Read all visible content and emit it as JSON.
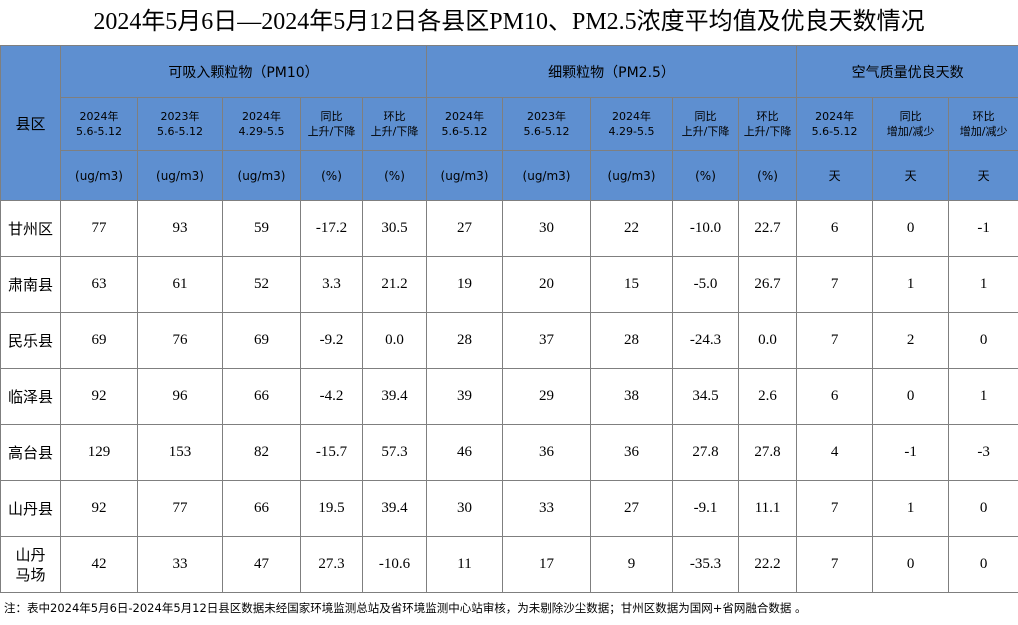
{
  "title": "2024年5月6日—2024年5月12日各县区PM10、PM2.5浓度平均值及优良天数情况",
  "table": {
    "corner": "县区",
    "groups": [
      "可吸入颗粒物（PM10）",
      "细颗粒物（PM2.5）",
      "空气质量优良天数"
    ],
    "subheaders": [
      [
        "2024年",
        "5.6-5.12"
      ],
      [
        "2023年",
        "5.6-5.12"
      ],
      [
        "2024年",
        "4.29-5.5"
      ],
      [
        "同比",
        "上升/下降"
      ],
      [
        "环比",
        "上升/下降"
      ],
      [
        "2024年",
        "5.6-5.12"
      ],
      [
        "2023年",
        "5.6-5.12"
      ],
      [
        "2024年",
        "4.29-5.5"
      ],
      [
        "同比",
        "上升/下降"
      ],
      [
        "环比",
        "上升/下降"
      ],
      [
        "2024年",
        "5.6-5.12"
      ],
      [
        "同比",
        "增加/减少"
      ],
      [
        "环比",
        "增加/减少"
      ]
    ],
    "units": [
      "(ug/m3)",
      "(ug/m3)",
      "(ug/m3)",
      "(%)",
      "(%)",
      "(ug/m3)",
      "(ug/m3)",
      "(ug/m3)",
      "(%)",
      "(%)",
      "天",
      "天",
      "天"
    ],
    "rows": [
      {
        "name": [
          "甘州区"
        ],
        "cells": [
          "77",
          "93",
          "59",
          "-17.2",
          "30.5",
          "27",
          "30",
          "22",
          "-10.0",
          "22.7",
          "6",
          "0",
          "-1"
        ]
      },
      {
        "name": [
          "肃南县"
        ],
        "cells": [
          "63",
          "61",
          "52",
          "3.3",
          "21.2",
          "19",
          "20",
          "15",
          "-5.0",
          "26.7",
          "7",
          "1",
          "1"
        ]
      },
      {
        "name": [
          "民乐县"
        ],
        "cells": [
          "69",
          "76",
          "69",
          "-9.2",
          "0.0",
          "28",
          "37",
          "28",
          "-24.3",
          "0.0",
          "7",
          "2",
          "0"
        ]
      },
      {
        "name": [
          "临泽县"
        ],
        "cells": [
          "92",
          "96",
          "66",
          "-4.2",
          "39.4",
          "39",
          "29",
          "38",
          "34.5",
          "2.6",
          "6",
          "0",
          "1"
        ]
      },
      {
        "name": [
          "高台县"
        ],
        "cells": [
          "129",
          "153",
          "82",
          "-15.7",
          "57.3",
          "46",
          "36",
          "36",
          "27.8",
          "27.8",
          "4",
          "-1",
          "-3"
        ]
      },
      {
        "name": [
          "山丹县"
        ],
        "cells": [
          "92",
          "77",
          "66",
          "19.5",
          "39.4",
          "30",
          "33",
          "27",
          "-9.1",
          "11.1",
          "7",
          "1",
          "0"
        ]
      },
      {
        "name": [
          "山丹",
          "马场"
        ],
        "cells": [
          "42",
          "33",
          "47",
          "27.3",
          "-10.6",
          "11",
          "17",
          "9",
          "-35.3",
          "22.2",
          "7",
          "0",
          "0"
        ]
      }
    ]
  },
  "note": "注：表中2024年5月6日-2024年5月12日县区数据未经国家环境监测总站及省环境监测中心站审核，为未剔除沙尘数据；甘州区数据为国网+省网融合数据 。"
}
